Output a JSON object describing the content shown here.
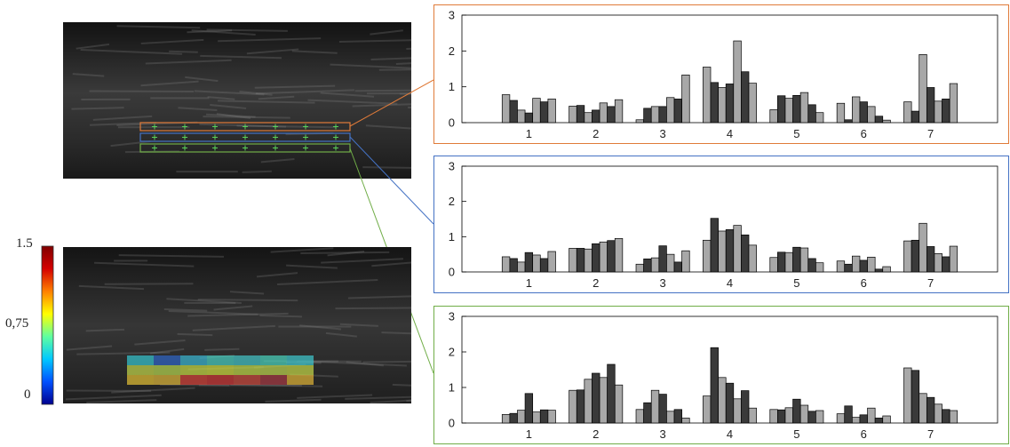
{
  "colorbar": {
    "max_label": "1.5",
    "mid_label": "0,75",
    "min_label": "0",
    "colors": [
      "#00008f",
      "#0050ff",
      "#00c8ff",
      "#5fffa0",
      "#ffff00",
      "#ff8000",
      "#d40000",
      "#800000"
    ]
  },
  "roi_colors": {
    "top": "#e07b39",
    "middle": "#4472c4",
    "bottom": "#70ad47"
  },
  "heatmap_overlay": {
    "rows": [
      [
        "#36c8d2",
        "#2f67c9",
        "#3bb9d6",
        "#48d2c4",
        "#44c7cb",
        "#4ad6c0",
        "#3fcad0"
      ],
      [
        "#c4d84a",
        "#b8d850",
        "#c9dd45",
        "#d2e040",
        "#c2dc48",
        "#bfd84e",
        "#c6da47"
      ],
      [
        "#e6c235",
        "#e0b83a",
        "#d8433a",
        "#d03838",
        "#cf4a3f",
        "#a83a45",
        "#e2b738"
      ]
    ]
  },
  "chart_data": [
    {
      "type": "bar",
      "roi": "top",
      "categories": [
        "1",
        "2",
        "3",
        "4",
        "5",
        "6",
        "7"
      ],
      "yticks": [
        "0",
        "1",
        "2",
        "3"
      ],
      "ylim": [
        0,
        3
      ],
      "bar_colors": [
        "#a8a8a8",
        "#3a3a3a",
        "#a8a8a8",
        "#3a3a3a",
        "#a8a8a8",
        "#3a3a3a",
        "#a8a8a8"
      ],
      "groups": [
        [
          0.78,
          0.62,
          0.35,
          0.27,
          0.68,
          0.58,
          0.66
        ],
        [
          0.46,
          0.48,
          0.28,
          0.35,
          0.55,
          0.45,
          0.64
        ],
        [
          0.08,
          0.4,
          0.45,
          0.45,
          0.7,
          0.66,
          1.33
        ],
        [
          1.55,
          1.12,
          0.98,
          1.08,
          2.28,
          1.42,
          1.1
        ],
        [
          0.36,
          0.75,
          0.68,
          0.76,
          0.84,
          0.5,
          0.28
        ],
        [
          0.54,
          0.08,
          0.72,
          0.58,
          0.45,
          0.18,
          0.07
        ],
        [
          0.58,
          0.32,
          1.9,
          0.98,
          0.6,
          0.66,
          1.09
        ]
      ]
    },
    {
      "type": "bar",
      "roi": "middle",
      "categories": [
        "1",
        "2",
        "3",
        "4",
        "5",
        "6",
        "7"
      ],
      "yticks": [
        "0",
        "1",
        "2",
        "3"
      ],
      "ylim": [
        0,
        3
      ],
      "bar_colors": [
        "#a8a8a8",
        "#3a3a3a",
        "#a8a8a8",
        "#3a3a3a",
        "#a8a8a8",
        "#3a3a3a",
        "#a8a8a8"
      ],
      "groups": [
        [
          0.43,
          0.38,
          0.28,
          0.55,
          0.48,
          0.38,
          0.58
        ],
        [
          0.67,
          0.67,
          0.65,
          0.8,
          0.85,
          0.89,
          0.95
        ],
        [
          0.22,
          0.37,
          0.4,
          0.74,
          0.5,
          0.28,
          0.6
        ],
        [
          0.9,
          1.52,
          1.16,
          1.2,
          1.32,
          1.05,
          0.76
        ],
        [
          0.41,
          0.56,
          0.55,
          0.7,
          0.68,
          0.38,
          0.26
        ],
        [
          0.31,
          0.22,
          0.45,
          0.33,
          0.42,
          0.08,
          0.15
        ],
        [
          0.88,
          0.9,
          1.38,
          0.72,
          0.52,
          0.43,
          0.73
        ]
      ]
    },
    {
      "type": "bar",
      "roi": "bottom",
      "categories": [
        "1",
        "2",
        "3",
        "4",
        "5",
        "6",
        "7"
      ],
      "yticks": [
        "0",
        "1",
        "2",
        "3"
      ],
      "ylim": [
        0,
        3
      ],
      "bar_colors": [
        "#a8a8a8",
        "#3a3a3a",
        "#a8a8a8",
        "#3a3a3a",
        "#a8a8a8",
        "#3a3a3a",
        "#a8a8a8"
      ],
      "groups": [
        [
          0.24,
          0.27,
          0.36,
          0.83,
          0.31,
          0.37,
          0.36
        ],
        [
          0.92,
          0.93,
          1.23,
          1.4,
          1.28,
          1.65,
          1.07
        ],
        [
          0.38,
          0.57,
          0.92,
          0.81,
          0.33,
          0.38,
          0.14
        ],
        [
          0.76,
          2.12,
          1.28,
          1.12,
          0.68,
          0.91,
          0.42
        ],
        [
          0.38,
          0.37,
          0.43,
          0.67,
          0.5,
          0.33,
          0.35
        ],
        [
          0.26,
          0.48,
          0.16,
          0.23,
          0.42,
          0.14,
          0.2
        ],
        [
          1.55,
          1.48,
          0.83,
          0.72,
          0.53,
          0.38,
          0.35
        ]
      ]
    }
  ]
}
